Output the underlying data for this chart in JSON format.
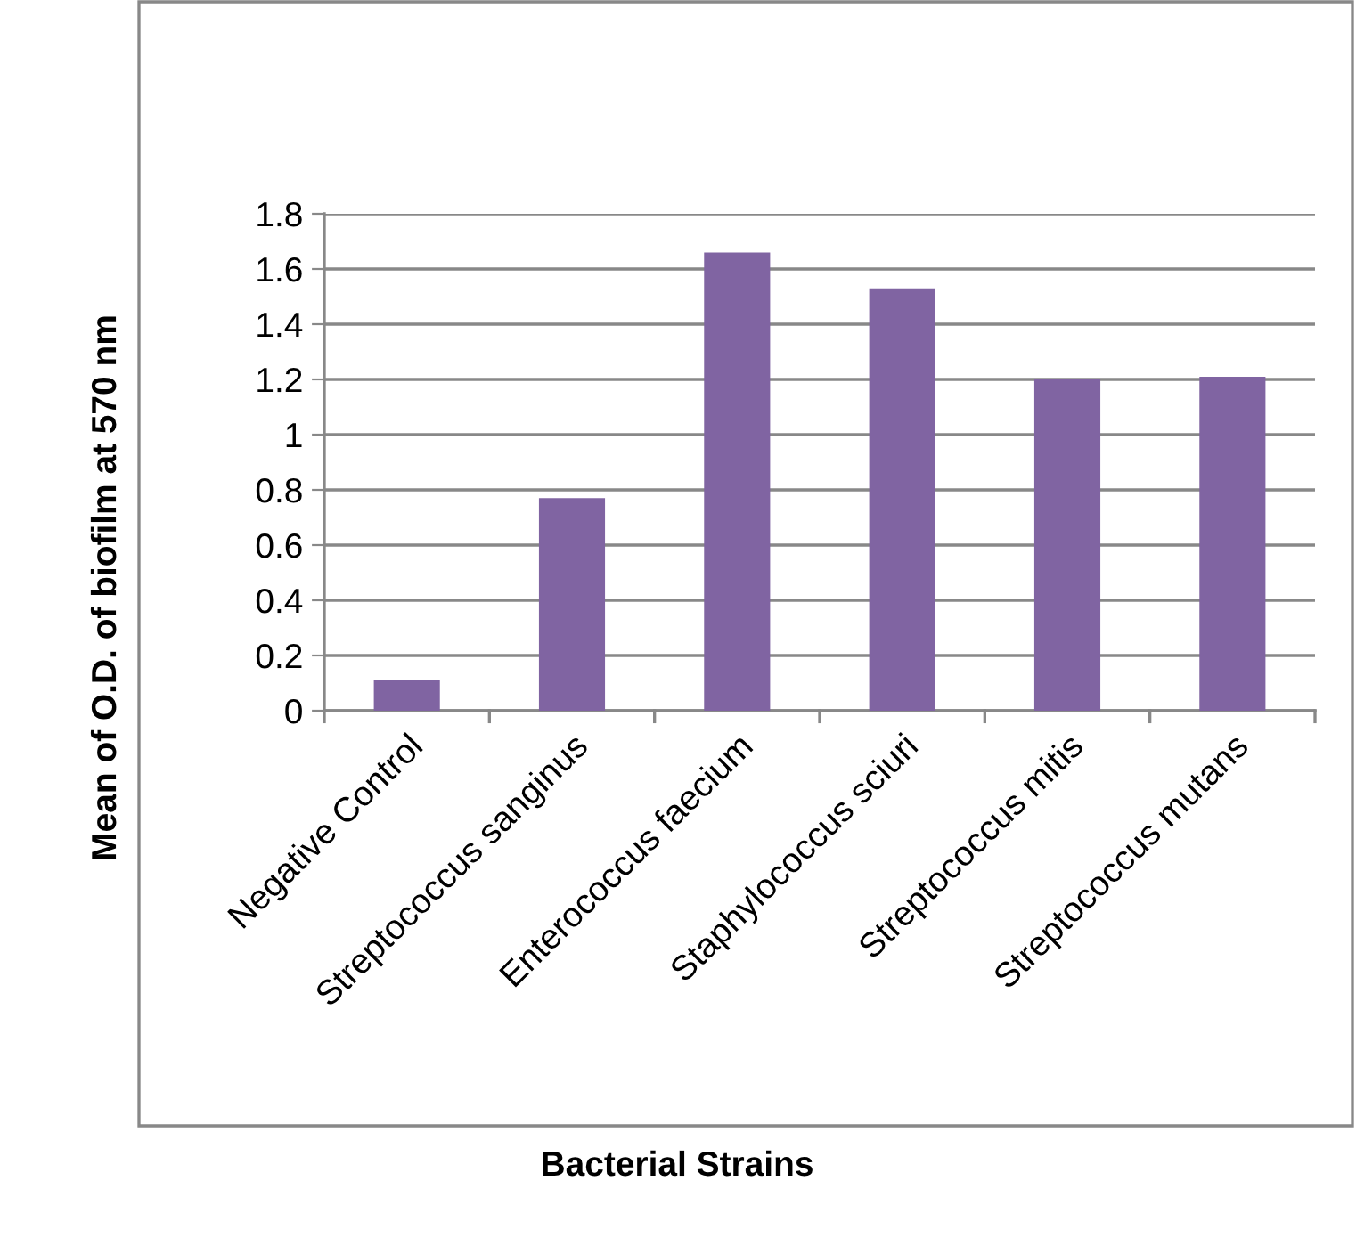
{
  "chart_data": {
    "type": "bar",
    "categories": [
      "Negative Control",
      "Streptococcus sanginus",
      "Enterococcus faecium",
      "Staphylococcus sciuri",
      "Streptococcus mitis",
      "Streptococcus mutans"
    ],
    "values": [
      0.11,
      0.77,
      1.66,
      1.53,
      1.2,
      1.21
    ],
    "color": "#8064a2",
    "ylim": [
      0,
      1.8
    ],
    "yticks": [
      0,
      {
        "value": 0.2,
        "label": "0.2"
      },
      {
        "value": 0.4,
        "label": "0.4"
      },
      {
        "value": 0.6,
        "label": "0.6"
      },
      {
        "value": 0.8,
        "label": "0.8"
      },
      1,
      {
        "value": 1.2,
        "label": "1.2"
      },
      {
        "value": 1.4,
        "label": "1.4"
      },
      {
        "value": 1.6,
        "label": "1.6"
      },
      {
        "value": 1.8,
        "label": "1.8"
      }
    ],
    "grid": "y",
    "xlabel": "Bacterial Strains",
    "ylabel": "Mean of O.D. of biofilm at 570 nm"
  }
}
